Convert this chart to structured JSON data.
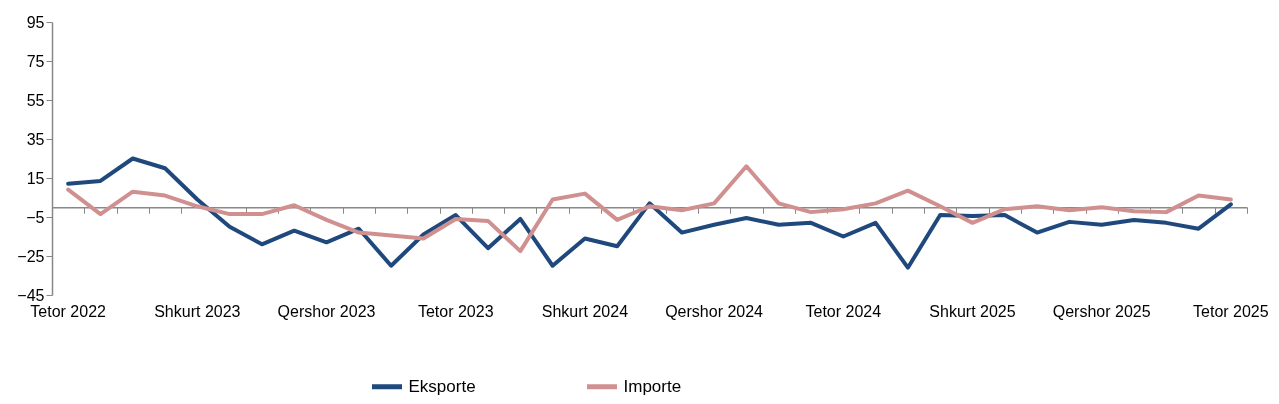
{
  "chart_data": {
    "type": "line",
    "categories": [
      "Tetor 2022",
      null,
      null,
      null,
      "Shkurt 2023",
      null,
      null,
      null,
      "Qershor 2023",
      null,
      null,
      null,
      "Tetor 2023",
      null,
      null,
      null,
      "Shkurt 2024",
      null,
      null,
      null,
      "Qershor 2024",
      null,
      null,
      null,
      "Tetor 2024",
      null,
      null,
      null,
      "Shkurt 2025",
      null,
      null,
      null,
      "Qershor 2025",
      null,
      null,
      null,
      "Tetor 2025"
    ],
    "series": [
      {
        "name": "Eksporte",
        "color": "#1f497d",
        "values": [
          12,
          13.5,
          25,
          20,
          4,
          -10,
          -19,
          -12,
          -18,
          -11,
          -30,
          -14,
          -4,
          -21,
          -6,
          -30,
          -16,
          -20,
          2,
          -13,
          -9,
          -5.5,
          -9,
          -8,
          -15,
          -8,
          -31,
          -4,
          -4.5,
          -4,
          -13,
          -7.5,
          -9,
          -6.5,
          -8,
          -11,
          1.5
        ]
      },
      {
        "name": "Importe",
        "color": "#d09090",
        "values": [
          9,
          -3.5,
          8,
          6,
          0.5,
          -3.5,
          -3.5,
          1,
          -6.5,
          -13,
          -14.5,
          -16,
          -6,
          -7,
          -22.5,
          4,
          7,
          -6.5,
          0.5,
          -1.5,
          2,
          21,
          2,
          -2.5,
          -1,
          2,
          8.5,
          0.5,
          -8,
          -1,
          0.5,
          -1.5,
          0,
          -2,
          -2.5,
          6,
          4
        ]
      }
    ],
    "ylim": [
      -45,
      95
    ],
    "yticks": [
      -45,
      -25,
      -5,
      15,
      35,
      55,
      75,
      95
    ],
    "grid": false,
    "legend": "bottom",
    "marker": "none",
    "line_style": "solid"
  }
}
